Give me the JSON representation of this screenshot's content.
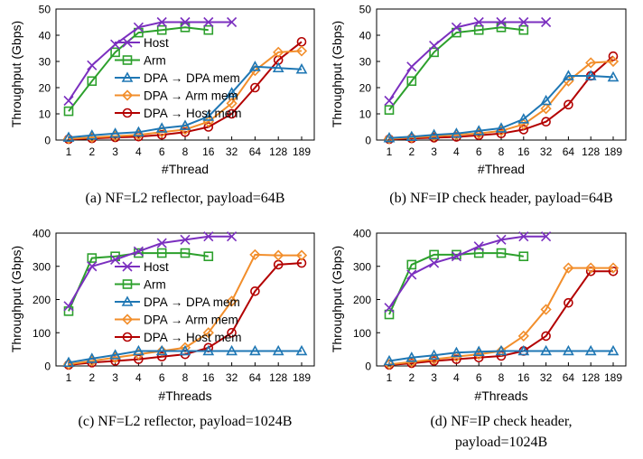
{
  "series_styles": [
    {
      "name": "Host",
      "color": "#7b2fbf",
      "marker": "x"
    },
    {
      "name": "Arm",
      "color": "#2ca02c",
      "marker": "square"
    },
    {
      "name": "DPA → DPA mem",
      "color": "#1f77b4",
      "marker": "triangle"
    },
    {
      "name": "DPA → Arm mem",
      "color": "#f28e2b",
      "marker": "diamond"
    },
    {
      "name": "DPA → Host mem",
      "color": "#b30000",
      "marker": "circle"
    }
  ],
  "chart_data": [
    {
      "type": "line",
      "caption": "(a) NF=L2 reflector, payload=64B",
      "xlabel": "#Thread",
      "ylabel": "Throughput (Gbps)",
      "categories": [
        "1",
        "2",
        "3",
        "4",
        "6",
        "8",
        "16",
        "32",
        "64",
        "128",
        "189"
      ],
      "ylim": [
        0,
        50
      ],
      "yticks": [
        0,
        10,
        20,
        30,
        40,
        50
      ],
      "legend": "inside-left",
      "series": [
        {
          "name": "Host",
          "values": [
            15,
            28.5,
            36.5,
            43,
            45,
            45,
            45,
            45,
            null,
            null,
            null
          ]
        },
        {
          "name": "Arm",
          "values": [
            11,
            22.5,
            33.5,
            41,
            42,
            43,
            42,
            null,
            null,
            null,
            null
          ]
        },
        {
          "name": "DPA → DPA mem",
          "values": [
            1,
            1.8,
            2.5,
            3,
            4.5,
            5.5,
            9,
            18,
            28,
            27.5,
            27
          ]
        },
        {
          "name": "DPA → Arm mem",
          "values": [
            0.5,
            1,
            1.5,
            2,
            3,
            4,
            7,
            14,
            26.5,
            33.5,
            34
          ]
        },
        {
          "name": "DPA → Host mem",
          "values": [
            0.3,
            0.6,
            1,
            1.3,
            2,
            3,
            5,
            10,
            20,
            30.5,
            37.5
          ]
        }
      ]
    },
    {
      "type": "line",
      "caption": "(b) NF=IP check header, payload=64B",
      "xlabel": "#Thread",
      "ylabel": "Throughput (Gbps)",
      "categories": [
        "1",
        "2",
        "3",
        "4",
        "6",
        "8",
        "16",
        "32",
        "64",
        "128",
        "189"
      ],
      "ylim": [
        0,
        50
      ],
      "yticks": [
        0,
        10,
        20,
        30,
        40,
        50
      ],
      "legend": "",
      "series": [
        {
          "name": "Host",
          "values": [
            15,
            28,
            36,
            43,
            45,
            45,
            45,
            45,
            null,
            null,
            null
          ]
        },
        {
          "name": "Arm",
          "values": [
            11.5,
            22.5,
            33.5,
            41,
            42,
            43,
            42,
            null,
            null,
            null,
            null
          ]
        },
        {
          "name": "DPA → DPA mem",
          "values": [
            0.8,
            1.3,
            2,
            2.5,
            3.5,
            4.5,
            8,
            15,
            24.5,
            24.5,
            24
          ]
        },
        {
          "name": "DPA → Arm mem",
          "values": [
            0.5,
            1,
            1.5,
            2,
            2.5,
            3.5,
            6,
            12,
            22.5,
            29.5,
            30
          ]
        },
        {
          "name": "DPA → Host mem",
          "values": [
            0.3,
            0.6,
            0.9,
            1.2,
            1.8,
            2.5,
            4,
            7,
            13.5,
            24.5,
            32
          ]
        }
      ]
    },
    {
      "type": "line",
      "caption": "(c) NF=L2 reflector, payload=1024B",
      "xlabel": "#Threads",
      "ylabel": "Throughput (Gbps)",
      "categories": [
        "1",
        "2",
        "3",
        "4",
        "6",
        "8",
        "16",
        "32",
        "64",
        "128",
        "189"
      ],
      "ylim": [
        0,
        400
      ],
      "yticks": [
        0,
        100,
        200,
        300,
        400
      ],
      "legend": "inside-left",
      "series": [
        {
          "name": "Host",
          "values": [
            180,
            300,
            320,
            345,
            370,
            380,
            390,
            390,
            null,
            null,
            null
          ]
        },
        {
          "name": "Arm",
          "values": [
            165,
            325,
            330,
            340,
            340,
            340,
            330,
            null,
            null,
            null,
            null
          ]
        },
        {
          "name": "DPA → DPA mem",
          "values": [
            10,
            22,
            33,
            45,
            45,
            45,
            45,
            45,
            45,
            45,
            45
          ]
        },
        {
          "name": "DPA → Arm mem",
          "values": [
            5,
            15,
            25,
            35,
            45,
            55,
            100,
            195,
            335,
            333,
            333
          ]
        },
        {
          "name": "DPA → Host mem",
          "values": [
            3,
            10,
            15,
            20,
            28,
            35,
            55,
            100,
            225,
            305,
            310
          ]
        }
      ]
    },
    {
      "type": "line",
      "caption_lines": [
        "(d) NF=IP check header,",
        "payload=1024B"
      ],
      "xlabel": "#Threads",
      "ylabel": "Throughput (Gbps)",
      "categories": [
        "1",
        "2",
        "3",
        "4",
        "6",
        "8",
        "16",
        "32",
        "64",
        "128",
        "189"
      ],
      "ylim": [
        0,
        400
      ],
      "yticks": [
        0,
        100,
        200,
        300,
        400
      ],
      "legend": "",
      "series": [
        {
          "name": "Host",
          "values": [
            175,
            275,
            310,
            330,
            360,
            380,
            390,
            390,
            null,
            null,
            null
          ]
        },
        {
          "name": "Arm",
          "values": [
            155,
            305,
            335,
            335,
            340,
            340,
            330,
            null,
            null,
            null,
            null
          ]
        },
        {
          "name": "DPA → DPA mem",
          "values": [
            15,
            25,
            32,
            40,
            43,
            45,
            45,
            45,
            45,
            45,
            45
          ]
        },
        {
          "name": "DPA → Arm mem",
          "values": [
            5,
            12,
            20,
            28,
            35,
            45,
            90,
            170,
            295,
            295,
            295
          ]
        },
        {
          "name": "DPA → Host mem",
          "values": [
            3,
            8,
            15,
            20,
            25,
            30,
            45,
            90,
            190,
            285,
            285
          ]
        }
      ]
    }
  ]
}
